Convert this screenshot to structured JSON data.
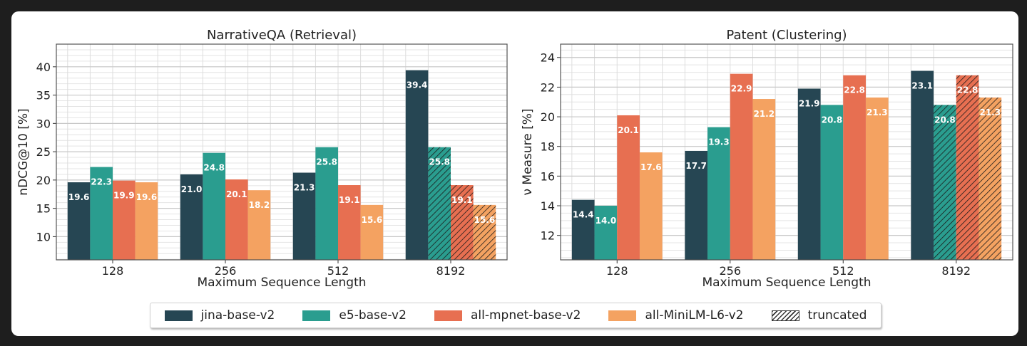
{
  "chart_data": [
    {
      "type": "bar",
      "title": "NarrativeQA (Retrieval)",
      "xlabel": "Maximum Sequence Length",
      "ylabel": "nDCG@10 [%]",
      "ylim": [
        5.9,
        44
      ],
      "yticks": [
        10,
        15,
        20,
        25,
        30,
        35,
        40
      ],
      "categories": [
        "128",
        "256",
        "512",
        "8192"
      ],
      "series": [
        {
          "name": "jina-base-v2",
          "values": [
            19.6,
            21.0,
            21.3,
            39.4
          ],
          "truncated": [
            false,
            false,
            false,
            false
          ]
        },
        {
          "name": "e5-base-v2",
          "values": [
            22.3,
            24.8,
            25.8,
            25.8
          ],
          "truncated": [
            false,
            false,
            false,
            true
          ]
        },
        {
          "name": "all-mpnet-base-v2",
          "values": [
            19.9,
            20.1,
            19.1,
            19.1
          ],
          "truncated": [
            false,
            false,
            false,
            true
          ]
        },
        {
          "name": "all-MiniLM-L6-v2",
          "values": [
            19.6,
            18.2,
            15.6,
            15.6
          ],
          "truncated": [
            false,
            false,
            false,
            true
          ]
        }
      ],
      "grid": true
    },
    {
      "type": "bar",
      "title": "Patent (Clustering)",
      "xlabel": "Maximum Sequence Length",
      "ylabel": "ν Measure [%]",
      "ylim": [
        10.35,
        24.9
      ],
      "yticks": [
        12,
        14,
        16,
        18,
        20,
        22,
        24
      ],
      "categories": [
        "128",
        "256",
        "512",
        "8192"
      ],
      "series": [
        {
          "name": "jina-base-v2",
          "values": [
            14.4,
            17.7,
            21.9,
            23.1
          ],
          "truncated": [
            false,
            false,
            false,
            false
          ]
        },
        {
          "name": "e5-base-v2",
          "values": [
            14.0,
            19.3,
            20.8,
            20.8
          ],
          "truncated": [
            false,
            false,
            false,
            true
          ]
        },
        {
          "name": "all-mpnet-base-v2",
          "values": [
            20.1,
            22.9,
            22.8,
            22.8
          ],
          "truncated": [
            false,
            false,
            false,
            true
          ]
        },
        {
          "name": "all-MiniLM-L6-v2",
          "values": [
            17.6,
            21.2,
            21.3,
            21.3
          ],
          "truncated": [
            false,
            false,
            false,
            true
          ]
        }
      ],
      "grid": true
    }
  ],
  "colors": [
    "#264653",
    "#2a9d8f",
    "#e76f51",
    "#f4a261"
  ],
  "legend": {
    "placement": "bottom-center",
    "items": [
      "jina-base-v2",
      "e5-base-v2",
      "all-mpnet-base-v2",
      "all-MiniLM-L6-v2"
    ],
    "truncated_label": "truncated"
  }
}
